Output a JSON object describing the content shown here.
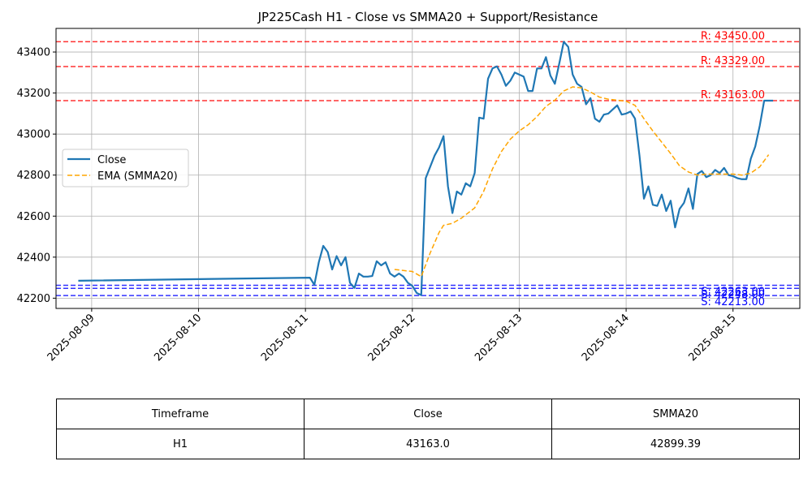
{
  "chart_data": {
    "type": "line",
    "title": "JP225Cash H1 - Close vs SMMA20 + Support/Resistance",
    "xlabel": "",
    "ylabel": "",
    "x_ticks": [
      "2025-08-09",
      "2025-08-10",
      "2025-08-11",
      "2025-08-12",
      "2025-08-13",
      "2025-08-14",
      "2025-08-15"
    ],
    "y_ticks": [
      42200,
      42400,
      42600,
      42800,
      43000,
      43200,
      43400
    ],
    "xlim": [
      "2025-08-08 16:00",
      "2025-08-15 15:00"
    ],
    "ylim": [
      42150,
      43515
    ],
    "grid": true,
    "legend_position": "center-left",
    "series": [
      {
        "name": "Close",
        "color": "#1f77b4",
        "style": "solid",
        "points": [
          [
            "2025-08-08 21:00",
            42285
          ],
          [
            "2025-08-11 01:00",
            42300
          ],
          [
            "2025-08-11 02:00",
            42265
          ],
          [
            "2025-08-11 03:00",
            42375
          ],
          [
            "2025-08-11 04:00",
            42455
          ],
          [
            "2025-08-11 05:00",
            42425
          ],
          [
            "2025-08-11 06:00",
            42340
          ],
          [
            "2025-08-11 07:00",
            42405
          ],
          [
            "2025-08-11 08:00",
            42360
          ],
          [
            "2025-08-11 09:00",
            42400
          ],
          [
            "2025-08-11 10:00",
            42275
          ],
          [
            "2025-08-11 11:00",
            42250
          ],
          [
            "2025-08-11 12:00",
            42320
          ],
          [
            "2025-08-11 13:00",
            42305
          ],
          [
            "2025-08-11 14:00",
            42305
          ],
          [
            "2025-08-11 15:00",
            42308
          ],
          [
            "2025-08-11 16:00",
            42380
          ],
          [
            "2025-08-11 17:00",
            42360
          ],
          [
            "2025-08-11 18:00",
            42375
          ],
          [
            "2025-08-11 19:00",
            42320
          ],
          [
            "2025-08-11 20:00",
            42305
          ],
          [
            "2025-08-11 21:00",
            42320
          ],
          [
            "2025-08-11 22:00",
            42305
          ],
          [
            "2025-08-11 23:00",
            42275
          ],
          [
            "2025-08-12 00:00",
            42260
          ],
          [
            "2025-08-12 01:00",
            42225
          ],
          [
            "2025-08-12 02:00",
            42215
          ],
          [
            "2025-08-12 03:00",
            42785
          ],
          [
            "2025-08-12 04:00",
            42840
          ],
          [
            "2025-08-12 05:00",
            42895
          ],
          [
            "2025-08-12 06:00",
            42935
          ],
          [
            "2025-08-12 07:00",
            42990
          ],
          [
            "2025-08-12 08:00",
            42745
          ],
          [
            "2025-08-12 09:00",
            42615
          ],
          [
            "2025-08-12 10:00",
            42720
          ],
          [
            "2025-08-12 11:00",
            42705
          ],
          [
            "2025-08-12 12:00",
            42760
          ],
          [
            "2025-08-12 13:00",
            42745
          ],
          [
            "2025-08-12 14:00",
            42810
          ],
          [
            "2025-08-12 15:00",
            43080
          ],
          [
            "2025-08-12 16:00",
            43075
          ],
          [
            "2025-08-12 17:00",
            43270
          ],
          [
            "2025-08-12 18:00",
            43320
          ],
          [
            "2025-08-12 19:00",
            43330
          ],
          [
            "2025-08-12 20:00",
            43290
          ],
          [
            "2025-08-12 21:00",
            43235
          ],
          [
            "2025-08-12 22:00",
            43260
          ],
          [
            "2025-08-12 23:00",
            43300
          ],
          [
            "2025-08-13 00:00",
            43290
          ],
          [
            "2025-08-13 01:00",
            43280
          ],
          [
            "2025-08-13 02:00",
            43210
          ],
          [
            "2025-08-13 03:00",
            43210
          ],
          [
            "2025-08-13 04:00",
            43320
          ],
          [
            "2025-08-13 05:00",
            43320
          ],
          [
            "2025-08-13 06:00",
            43375
          ],
          [
            "2025-08-13 07:00",
            43285
          ],
          [
            "2025-08-13 08:00",
            43245
          ],
          [
            "2025-08-13 09:00",
            43345
          ],
          [
            "2025-08-13 10:00",
            43450
          ],
          [
            "2025-08-13 11:00",
            43425
          ],
          [
            "2025-08-13 12:00",
            43290
          ],
          [
            "2025-08-13 13:00",
            43245
          ],
          [
            "2025-08-13 14:00",
            43230
          ],
          [
            "2025-08-13 15:00",
            43145
          ],
          [
            "2025-08-13 16:00",
            43175
          ],
          [
            "2025-08-13 17:00",
            43075
          ],
          [
            "2025-08-13 18:00",
            43060
          ],
          [
            "2025-08-13 19:00",
            43095
          ],
          [
            "2025-08-13 20:00",
            43100
          ],
          [
            "2025-08-13 21:00",
            43120
          ],
          [
            "2025-08-13 22:00",
            43140
          ],
          [
            "2025-08-13 23:00",
            43095
          ],
          [
            "2025-08-14 00:00",
            43100
          ],
          [
            "2025-08-14 01:00",
            43110
          ],
          [
            "2025-08-14 02:00",
            43075
          ],
          [
            "2025-08-14 03:00",
            42895
          ],
          [
            "2025-08-14 04:00",
            42685
          ],
          [
            "2025-08-14 05:00",
            42745
          ],
          [
            "2025-08-14 06:00",
            42655
          ],
          [
            "2025-08-14 07:00",
            42650
          ],
          [
            "2025-08-14 08:00",
            42705
          ],
          [
            "2025-08-14 09:00",
            42625
          ],
          [
            "2025-08-14 10:00",
            42675
          ],
          [
            "2025-08-14 11:00",
            42545
          ],
          [
            "2025-08-14 12:00",
            42635
          ],
          [
            "2025-08-14 13:00",
            42665
          ],
          [
            "2025-08-14 14:00",
            42735
          ],
          [
            "2025-08-14 15:00",
            42635
          ],
          [
            "2025-08-14 16:00",
            42805
          ],
          [
            "2025-08-14 17:00",
            42820
          ],
          [
            "2025-08-14 18:00",
            42790
          ],
          [
            "2025-08-14 19:00",
            42800
          ],
          [
            "2025-08-14 20:00",
            42825
          ],
          [
            "2025-08-14 21:00",
            42810
          ],
          [
            "2025-08-14 22:00",
            42835
          ],
          [
            "2025-08-14 23:00",
            42800
          ],
          [
            "2025-08-15 00:00",
            42795
          ],
          [
            "2025-08-15 01:00",
            42785
          ],
          [
            "2025-08-15 02:00",
            42780
          ],
          [
            "2025-08-15 03:00",
            42780
          ],
          [
            "2025-08-15 04:00",
            42880
          ],
          [
            "2025-08-15 05:00",
            42940
          ],
          [
            "2025-08-15 06:00",
            43040
          ],
          [
            "2025-08-15 07:00",
            43163
          ],
          [
            "2025-08-15 08:00",
            43163
          ],
          [
            "2025-08-15 09:00",
            43163
          ]
        ]
      },
      {
        "name": "EMA (SMMA20)",
        "color": "#ffa500",
        "style": "dashed",
        "points": [
          [
            "2025-08-11 20:00",
            42340
          ],
          [
            "2025-08-12 00:00",
            42330
          ],
          [
            "2025-08-12 02:00",
            42305
          ],
          [
            "2025-08-12 04:00",
            42420
          ],
          [
            "2025-08-12 06:00",
            42520
          ],
          [
            "2025-08-12 07:00",
            42555
          ],
          [
            "2025-08-12 09:00",
            42565
          ],
          [
            "2025-08-12 11:00",
            42590
          ],
          [
            "2025-08-12 14:00",
            42640
          ],
          [
            "2025-08-12 16:00",
            42720
          ],
          [
            "2025-08-12 18:00",
            42830
          ],
          [
            "2025-08-12 20:00",
            42915
          ],
          [
            "2025-08-12 22:00",
            42975
          ],
          [
            "2025-08-13 00:00",
            43015
          ],
          [
            "2025-08-13 02:00",
            43045
          ],
          [
            "2025-08-13 04:00",
            43085
          ],
          [
            "2025-08-13 06:00",
            43135
          ],
          [
            "2025-08-13 08:00",
            43165
          ],
          [
            "2025-08-13 10:00",
            43210
          ],
          [
            "2025-08-13 12:00",
            43230
          ],
          [
            "2025-08-13 14:00",
            43225
          ],
          [
            "2025-08-13 16:00",
            43205
          ],
          [
            "2025-08-13 18:00",
            43180
          ],
          [
            "2025-08-13 20:00",
            43170
          ],
          [
            "2025-08-13 22:00",
            43165
          ],
          [
            "2025-08-14 00:00",
            43160
          ],
          [
            "2025-08-14 02:00",
            43140
          ],
          [
            "2025-08-14 04:00",
            43075
          ],
          [
            "2025-08-14 06:00",
            43015
          ],
          [
            "2025-08-14 08:00",
            42960
          ],
          [
            "2025-08-14 10:00",
            42905
          ],
          [
            "2025-08-14 12:00",
            42845
          ],
          [
            "2025-08-14 14:00",
            42815
          ],
          [
            "2025-08-14 16:00",
            42800
          ],
          [
            "2025-08-14 18:00",
            42805
          ],
          [
            "2025-08-14 20:00",
            42805
          ],
          [
            "2025-08-14 22:00",
            42805
          ],
          [
            "2025-08-15 00:00",
            42805
          ],
          [
            "2025-08-15 02:00",
            42800
          ],
          [
            "2025-08-15 04:00",
            42810
          ],
          [
            "2025-08-15 06:00",
            42840
          ],
          [
            "2025-08-15 08:00",
            42899.39
          ]
        ]
      }
    ],
    "horizontal_lines": [
      {
        "kind": "resistance",
        "value": 43450.0,
        "label": "R: 43450.00",
        "color": "#ff0000"
      },
      {
        "kind": "resistance",
        "value": 43329.0,
        "label": "R: 43329.00",
        "color": "#ff0000"
      },
      {
        "kind": "resistance",
        "value": 43163.0,
        "label": "R: 43163.00",
        "color": "#ff0000"
      },
      {
        "kind": "support",
        "value": 42263.0,
        "label": "S: 42263.00",
        "color": "#0000ff"
      },
      {
        "kind": "support",
        "value": 42248.0,
        "label": "S: 42248.00",
        "color": "#0000ff"
      },
      {
        "kind": "support",
        "value": 42213.0,
        "label": "S: 42213.00",
        "color": "#0000ff"
      }
    ]
  },
  "table": {
    "headers": [
      "Timeframe",
      "Close",
      "SMMA20"
    ],
    "rows": [
      [
        "H1",
        "43163.0",
        "42899.39"
      ]
    ]
  }
}
